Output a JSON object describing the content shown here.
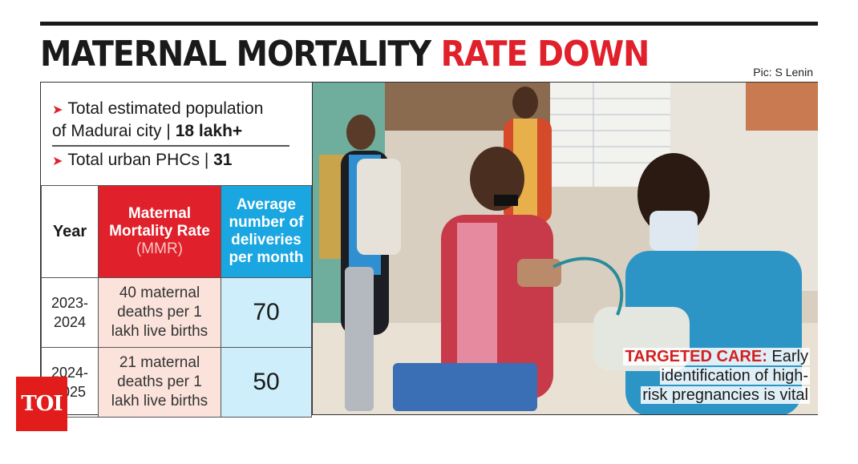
{
  "headline": {
    "part1": "MATERNAL MORTALITY ",
    "part2": "RATE DOWN"
  },
  "credit": "Pic: S Lenin",
  "facts": [
    {
      "text": "Total estimated population",
      "line2": "of Madurai city",
      "value": "18 lakh+"
    },
    {
      "text": "Total urban PHCs",
      "value": "31"
    }
  ],
  "table": {
    "headers": {
      "year": "Year",
      "mmr_line1": "Maternal",
      "mmr_line2": "Mortality Rate",
      "mmr_line3": "(MMR)",
      "avg_line1": "Average",
      "avg_line2": "number of",
      "avg_line3": "deliveries",
      "avg_line4": "per month"
    },
    "rows": [
      {
        "year1": "2023-",
        "year2": "2024",
        "mmr1": "40 maternal",
        "mmr2": "deaths per 1",
        "mmr3": "lakh live births",
        "avg": "70"
      },
      {
        "year1": "2024-",
        "year2": "2025",
        "mmr1": "21 maternal",
        "mmr2": "deaths per 1",
        "mmr3": "lakh live births",
        "avg": "50"
      }
    ]
  },
  "caption": {
    "label": "TARGETED CARE:",
    "line1": "Early",
    "line2": "identification of high-",
    "line3": "risk pregnancies is vital"
  },
  "logo": "TOI",
  "colors": {
    "accent_red": "#e0202a",
    "accent_blue": "#1aa6e0",
    "mmr_cell": "#fbe3dc",
    "avg_cell": "#cdeefa"
  }
}
